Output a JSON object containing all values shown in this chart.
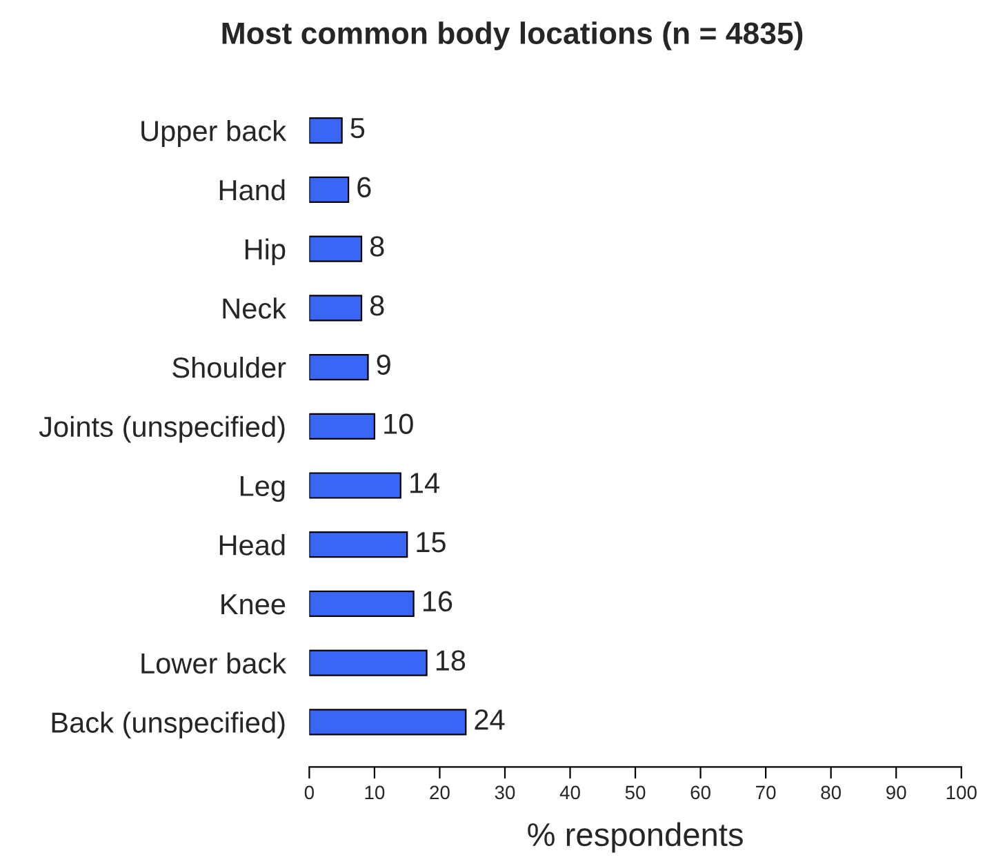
{
  "chart_data": {
    "type": "bar",
    "orientation": "horizontal",
    "title": "Most common body locations (n = 4835)",
    "xlabel": "% respondents",
    "categories": [
      "Upper back",
      "Hand",
      "Hip",
      "Neck",
      "Shoulder",
      "Joints (unspecified)",
      "Leg",
      "Head",
      "Knee",
      "Lower back",
      "Back (unspecified)"
    ],
    "values": [
      5,
      6,
      8,
      8,
      9,
      10,
      14,
      15,
      16,
      18,
      24
    ],
    "color": "#3a66f5",
    "xlim": [
      0,
      100
    ],
    "xticks": [
      0,
      10,
      20,
      30,
      40,
      50,
      60,
      70,
      80,
      90,
      100
    ],
    "data_labels": true,
    "grid": false,
    "legend": false
  }
}
